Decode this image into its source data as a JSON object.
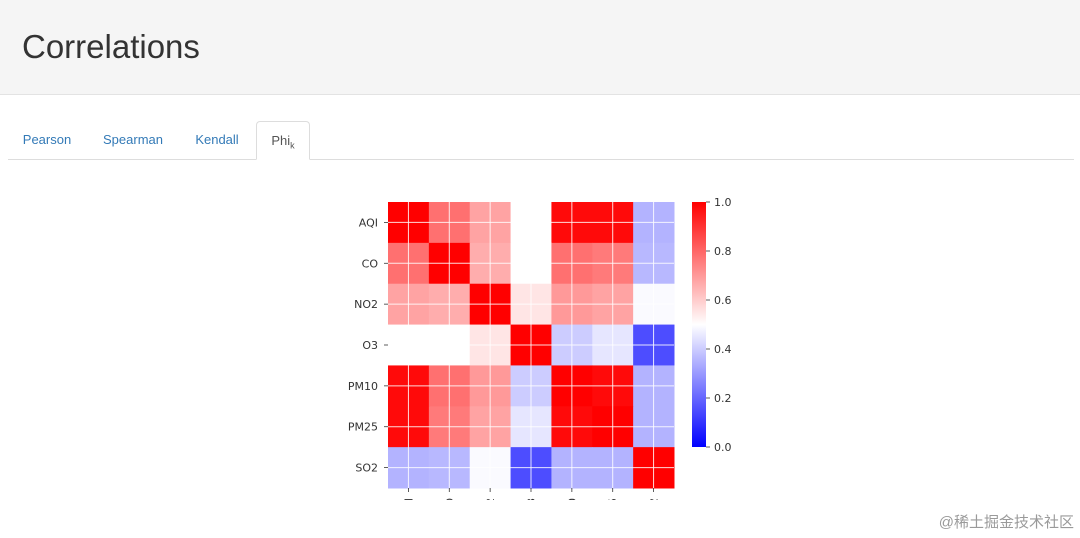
{
  "page": {
    "title": "Correlations"
  },
  "tabs": [
    {
      "label": "Pearson",
      "sub": "",
      "active": false
    },
    {
      "label": "Spearman",
      "sub": "",
      "active": false
    },
    {
      "label": "Kendall",
      "sub": "",
      "active": false
    },
    {
      "label": "Phi",
      "sub": "k",
      "active": true
    }
  ],
  "watermark": "@稀土掘金技术社区",
  "chart_data": {
    "type": "heatmap",
    "labels": [
      "AQI",
      "CO",
      "NO2",
      "O3",
      "PM10",
      "PM25",
      "SO2"
    ],
    "matrix": [
      [
        1.0,
        0.78,
        0.68,
        0.5,
        0.98,
        0.98,
        0.35
      ],
      [
        0.78,
        1.0,
        0.66,
        0.5,
        0.78,
        0.76,
        0.36
      ],
      [
        0.68,
        0.66,
        1.0,
        0.55,
        0.7,
        0.68,
        0.49
      ],
      [
        0.5,
        0.5,
        0.55,
        1.0,
        0.4,
        0.45,
        0.15
      ],
      [
        0.98,
        0.78,
        0.7,
        0.4,
        1.0,
        0.98,
        0.35
      ],
      [
        0.98,
        0.76,
        0.68,
        0.45,
        0.98,
        1.0,
        0.35
      ],
      [
        0.35,
        0.36,
        0.49,
        0.15,
        0.35,
        0.35,
        1.0
      ]
    ],
    "colorbar": {
      "min": 0.0,
      "max": 1.0,
      "ticks": [
        "0.0",
        "0.2",
        "0.4",
        "0.6",
        "0.8",
        "1.0"
      ],
      "colors": {
        "low": "#0000ff",
        "mid": "#ffffff",
        "high": "#ff0000"
      }
    },
    "grid": true
  }
}
